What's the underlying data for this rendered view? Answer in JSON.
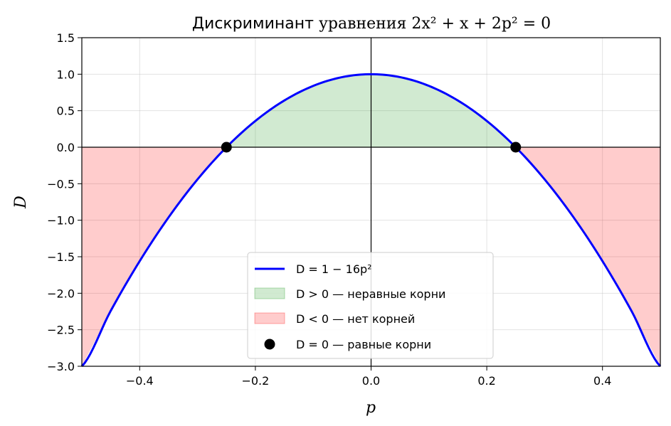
{
  "chart_data": {
    "type": "line",
    "title": "Дискриминант уравнения 2x² + x + 2p² = 0",
    "xlabel": "p",
    "ylabel": "D",
    "xlim": [
      -0.5,
      0.5
    ],
    "ylim": [
      -3.0,
      1.5
    ],
    "x_ticks": [
      "−0.4",
      "−0.2",
      "0.0",
      "0.2",
      "0.4"
    ],
    "x_tick_values": [
      -0.4,
      -0.2,
      0.0,
      0.2,
      0.4
    ],
    "y_ticks": [
      "1.5",
      "1.0",
      "0.5",
      "0.0",
      "−0.5",
      "−1.0",
      "−1.5",
      "−2.0",
      "−2.5",
      "−3.0"
    ],
    "y_tick_values": [
      1.5,
      1.0,
      0.5,
      0.0,
      -0.5,
      -1.0,
      -1.5,
      -2.0,
      -2.5,
      -3.0
    ],
    "grid": true,
    "legend_position": "bottom-center",
    "series": [
      {
        "name": "D = 1 − 16p²",
        "color": "#0000ff",
        "x": [
          -0.5,
          -0.45,
          -0.4,
          -0.35,
          -0.3,
          -0.25,
          -0.2,
          -0.15,
          -0.1,
          -0.05,
          0.0,
          0.05,
          0.1,
          0.15,
          0.2,
          0.25,
          0.3,
          0.35,
          0.4,
          0.45,
          0.5
        ],
        "y": [
          -3.0,
          -2.24,
          -1.56,
          -0.96,
          -0.44,
          0.0,
          0.36,
          0.64,
          0.84,
          0.96,
          1.0,
          0.96,
          0.84,
          0.64,
          0.36,
          0.0,
          -0.44,
          -0.96,
          -1.56,
          -2.24,
          -3.0
        ]
      }
    ],
    "regions": [
      {
        "name": "D > 0 — неравные корни",
        "color": "#2ca02c"
      },
      {
        "name": "D < 0 — нет корней",
        "color": "#ff0000"
      }
    ],
    "points": {
      "name": "D = 0 — равные корни",
      "color": "#000000",
      "x": [
        -0.25,
        0.25
      ],
      "y": [
        0.0,
        0.0
      ]
    }
  }
}
